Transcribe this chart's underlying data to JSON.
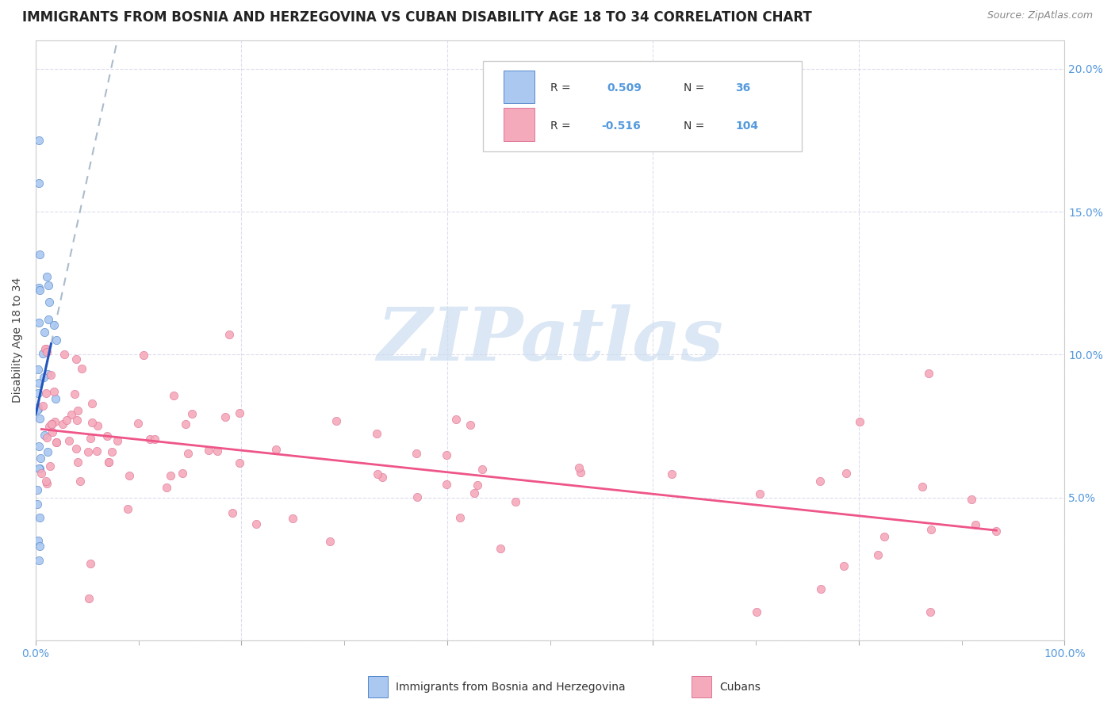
{
  "title": "IMMIGRANTS FROM BOSNIA AND HERZEGOVINA VS CUBAN DISABILITY AGE 18 TO 34 CORRELATION CHART",
  "source": "Source: ZipAtlas.com",
  "ylabel": "Disability Age 18 to 34",
  "xlim": [
    0.0,
    1.0
  ],
  "ylim": [
    0.0,
    0.21
  ],
  "x_ticks": [
    0.0,
    0.2,
    0.4,
    0.6,
    0.8,
    1.0
  ],
  "x_tick_labels": [
    "0.0%",
    "",
    "",
    "",
    "",
    "100.0%"
  ],
  "y_ticks": [
    0.0,
    0.05,
    0.1,
    0.15,
    0.2
  ],
  "y_tick_labels_right": [
    "",
    "5.0%",
    "10.0%",
    "15.0%",
    "20.0%"
  ],
  "bosnia_R": 0.509,
  "bosnia_N": 36,
  "cuban_R": -0.516,
  "cuban_N": 104,
  "bosnia_color": "#aac8f0",
  "cuban_color": "#f5aabb",
  "bosnia_edge_color": "#5588cc",
  "cuban_edge_color": "#dd7799",
  "bosnia_line_color": "#2255bb",
  "cuban_line_color": "#ee5588",
  "dash_color": "#aabbcc",
  "grid_color": "#ddddee",
  "tick_color": "#5599dd",
  "legend_border_color": "#cccccc",
  "legend_text_color": "#333333",
  "watermark_color": "#ccddf0",
  "watermark": "ZIPatlas",
  "legend_bosnia_label": "Immigrants from Bosnia and Herzegovina",
  "legend_cuban_label": "Cubans",
  "title_fontsize": 12,
  "source_fontsize": 9,
  "axis_label_fontsize": 10,
  "tick_fontsize": 10,
  "legend_fontsize": 10
}
